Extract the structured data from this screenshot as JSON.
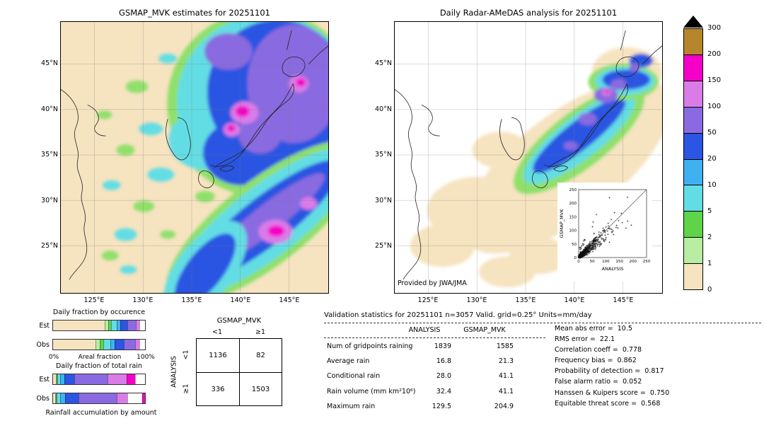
{
  "palette": {
    "cream": "#f6e3c0",
    "palegreen": "#b9eda2",
    "green": "#5fd349",
    "greenfringe": "#8fe06a",
    "cyan": "#63dde4",
    "lightblue": "#3fb1f0",
    "blue": "#2b55e2",
    "purple": "#8a6ae0",
    "orchid": "#da7ce8",
    "magenta": "#f400c8",
    "gold": "#b5862b",
    "white": "#ffffff"
  },
  "left_map": {
    "title": "GSMAP_MVK estimates for 20251101",
    "lat_ticks": [
      "45°N",
      "40°N",
      "35°N",
      "30°N",
      "25°N"
    ],
    "lon_ticks": [
      "125°E",
      "130°E",
      "135°E",
      "140°E",
      "145°E"
    ]
  },
  "right_map": {
    "title": "Daily Radar-AMeDAS analysis for 20251101",
    "credit": "Provided by JWA/JMA",
    "lat_ticks": [
      "45°N",
      "40°N",
      "35°N",
      "30°N",
      "25°N"
    ],
    "lon_ticks": [
      "125°E",
      "130°E",
      "135°E",
      "140°E",
      "145°E"
    ]
  },
  "colorbar": {
    "labels": [
      "300",
      "200",
      "150",
      "100",
      "50",
      "20",
      "10",
      "5",
      "2",
      "1",
      "0"
    ],
    "segment_colors": [
      "gold",
      "magenta",
      "orchid",
      "purple",
      "blue",
      "lightblue",
      "cyan",
      "green",
      "palegreen",
      "cream"
    ],
    "units": "mm/day"
  },
  "scatter_inset": {
    "xlabel": "ANALYSIS",
    "ylabel": "GSMAP_MVK",
    "ticks": [
      "0",
      "50",
      "100",
      "150",
      "200",
      "250"
    ],
    "axis_range": [
      0,
      250
    ]
  },
  "fractions": {
    "occurrence_title": "Daily fraction by occurence",
    "total_title": "Daily fraction of total rain",
    "accumulation_title": "Rainfall accumulation by amount",
    "row_labels": {
      "est": "Est",
      "obs": "Obs"
    },
    "axis": {
      "left": "0%",
      "center": "Areal fraction",
      "right": "100%"
    }
  },
  "contingency": {
    "col_title": "GSMAP_MVK",
    "row_title": "ANALYSIS",
    "col_labels": [
      "<1",
      "≥1"
    ],
    "row_labels": [
      "<1",
      "≥1"
    ],
    "cells": [
      [
        "1136",
        "82"
      ],
      [
        "336",
        "1503"
      ]
    ]
  },
  "validation": {
    "title": "Validation statistics for 20251101  n=3057 Valid. grid=0.25° Units=mm/day",
    "columns": [
      "ANALYSIS",
      "GSMAP_MVK"
    ],
    "rows": [
      {
        "label": "Num of gridpoints raining",
        "analysis": "1839",
        "gsmap": "1585"
      },
      {
        "label": "Average rain",
        "analysis": "16.8",
        "gsmap": "21.3"
      },
      {
        "label": "Conditional rain",
        "analysis": "28.0",
        "gsmap": "41.1"
      },
      {
        "label": "Rain volume (mm km²10⁶)",
        "analysis": "32.4",
        "gsmap": "41.1"
      },
      {
        "label": "Maximum rain",
        "analysis": "129.5",
        "gsmap": "204.9"
      }
    ],
    "scores": [
      {
        "label": "Mean abs error",
        "value": "10.5"
      },
      {
        "label": "RMS error",
        "value": "22.1"
      },
      {
        "label": "Correlation coeff",
        "value": "0.778"
      },
      {
        "label": "Frequency bias",
        "value": "0.862"
      },
      {
        "label": "Probability of detection",
        "value": "0.817"
      },
      {
        "label": "False alarm ratio",
        "value": "0.052"
      },
      {
        "label": "Hanssen & Kuipers score",
        "value": "0.750"
      },
      {
        "label": "Equitable threat score",
        "value": "0.568"
      }
    ]
  },
  "chart_data": [
    {
      "id": "gsmap_map",
      "type": "heatmap",
      "title": "GSMAP_MVK estimates for 20251101",
      "x_ticks": [
        "125°E",
        "130°E",
        "135°E",
        "140°E",
        "145°E"
      ],
      "y_ticks": [
        "45°N",
        "40°N",
        "35°N",
        "30°N",
        "25°N"
      ],
      "units": "mm/day",
      "scale_breaks": [
        0,
        1,
        2,
        5,
        10,
        20,
        50,
        100,
        150,
        200,
        300
      ],
      "description": "Satellite precipitation map: broad 20-150 mm/day storm (blue/purple) over and east of Japan with magenta >150 cores near NW Honshu and Hokkaido, a SE-trending rainband off the Pacific coast with a magenta core, and scattered 1-10 mm/day patches over the East China Sea; background 0-1 mm/day (cream)."
    },
    {
      "id": "radar_map",
      "type": "heatmap",
      "title": "Daily Radar-AMeDAS analysis for 20251101",
      "x_ticks": [
        "125°E",
        "130°E",
        "135°E",
        "140°E",
        "145°E"
      ],
      "y_ticks": [
        "45°N",
        "40°N",
        "35°N",
        "30°N",
        "25°N"
      ],
      "units": "mm/day",
      "scale_breaks": [
        0,
        1,
        2,
        5,
        10,
        20,
        50,
        100,
        150,
        200,
        300
      ],
      "description": "Radar-AMeDAS analysis: rain restricted to radar coverage along the Japanese archipelago; 20-50 mm/day blue core along Honshu/Hokkaido with 50-150 purple patches and a small magenta maximum over northern Honshu; 0-1 mm/day cream halo around the islands; white elsewhere (no data)."
    },
    {
      "id": "contingency",
      "type": "table",
      "title": "Contingency table (threshold 1 mm/day)",
      "row_axis": "ANALYSIS",
      "col_axis": "GSMAP_MVK",
      "row_labels": [
        "<1",
        "≥1"
      ],
      "col_labels": [
        "<1",
        "≥1"
      ],
      "values": [
        [
          1136,
          82
        ],
        [
          336,
          1503
        ]
      ]
    },
    {
      "id": "validation_stats",
      "type": "table",
      "title": "Validation statistics for 20251101  n=3057 Valid. grid=0.25° Units=mm/day",
      "columns": [
        "",
        "ANALYSIS",
        "GSMAP_MVK"
      ],
      "rows": [
        [
          "Num of gridpoints raining",
          1839,
          1585
        ],
        [
          "Average rain",
          16.8,
          21.3
        ],
        [
          "Conditional rain",
          28.0,
          41.1
        ],
        [
          "Rain volume (mm km²10⁶)",
          32.4,
          41.1
        ],
        [
          "Maximum rain",
          129.5,
          204.9
        ]
      ]
    },
    {
      "id": "skill_scores",
      "type": "table",
      "title": "Skill scores",
      "rows": [
        [
          "Mean abs error",
          10.5
        ],
        [
          "RMS error",
          22.1
        ],
        [
          "Correlation coeff",
          0.778
        ],
        [
          "Frequency bias",
          0.862
        ],
        [
          "Probability of detection",
          0.817
        ],
        [
          "False alarm ratio",
          0.052
        ],
        [
          "Hanssen & Kuipers score",
          0.75
        ],
        [
          "Equitable threat score",
          0.568
        ]
      ]
    },
    {
      "id": "scatter",
      "type": "scatter",
      "title": "GSMAP_MVK vs ANALYSIS",
      "xlabel": "ANALYSIS",
      "ylabel": "GSMAP_MVK",
      "xlim": [
        0,
        250
      ],
      "ylim": [
        0,
        250
      ],
      "marker": "+",
      "note": "Dense cluster of raining gridpoints below ~100 mm/day hugging the 1:1 line, scattered outliers up to ~250; correlation coeff 0.778."
    },
    {
      "id": "fraction_occurrence",
      "type": "bar",
      "subtype": "stacked-horizontal",
      "title": "Daily fraction by occurence",
      "categories": [
        "Est",
        "Obs"
      ],
      "xlabel": "Areal fraction",
      "xlim_pct": [
        0,
        100
      ],
      "est_segments": [
        [
          "cream",
          56
        ],
        [
          "palegreen",
          4
        ],
        [
          "green",
          3
        ],
        [
          "cyan",
          6
        ],
        [
          "lightblue",
          4
        ],
        [
          "blue",
          8
        ],
        [
          "purple",
          9
        ],
        [
          "orchid",
          4
        ],
        [
          "white",
          6
        ]
      ],
      "obs_segments": [
        [
          "cream",
          46
        ],
        [
          "palegreen",
          5
        ],
        [
          "green",
          4
        ],
        [
          "cyan",
          7
        ],
        [
          "lightblue",
          5
        ],
        [
          "blue",
          10
        ],
        [
          "purple",
          12
        ],
        [
          "orchid",
          5
        ],
        [
          "white",
          6
        ]
      ]
    },
    {
      "id": "fraction_total",
      "type": "bar",
      "subtype": "stacked-horizontal",
      "title": "Daily fraction of total rain",
      "categories": [
        "Est",
        "Obs"
      ],
      "xlabel": "Areal fraction",
      "xlim_pct": [
        0,
        100
      ],
      "est_segments": [
        [
          "cream",
          3
        ],
        [
          "palegreen",
          1
        ],
        [
          "green",
          1
        ],
        [
          "cyan",
          3
        ],
        [
          "lightblue",
          4
        ],
        [
          "blue",
          11
        ],
        [
          "purple",
          36
        ],
        [
          "orchid",
          21
        ],
        [
          "magenta",
          9
        ],
        [
          "white",
          11
        ]
      ],
      "obs_segments": [
        [
          "cream",
          2
        ],
        [
          "palegreen",
          1
        ],
        [
          "green",
          1
        ],
        [
          "cyan",
          4
        ],
        [
          "lightblue",
          5
        ],
        [
          "blue",
          15
        ],
        [
          "purple",
          41
        ],
        [
          "orchid",
          12
        ],
        [
          "white",
          16
        ],
        [
          "magenta",
          3
        ]
      ]
    }
  ]
}
